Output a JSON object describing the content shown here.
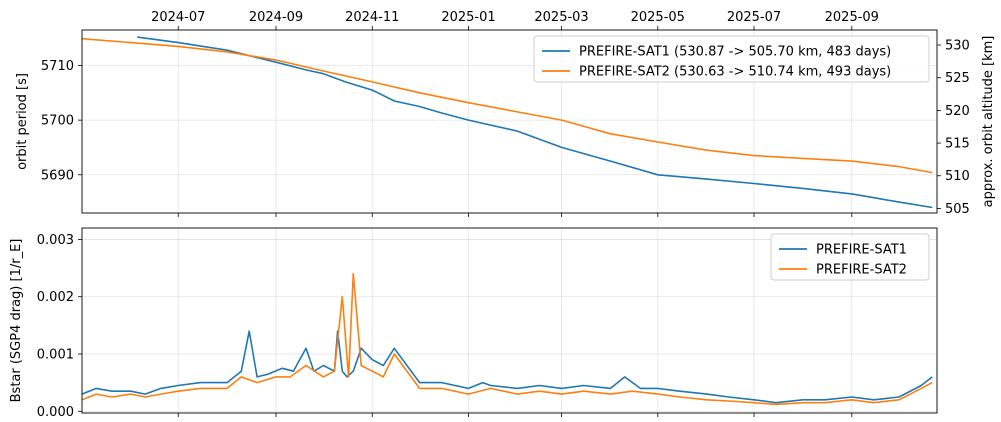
{
  "chart_data": [
    {
      "type": "line",
      "panel": "top",
      "title": "",
      "xlabel": "",
      "ylabel": "orbit period [s]",
      "ylabel_right": "approx. orbit altitude [km]",
      "xlim": [
        "2024-05-01",
        "2025-10-25"
      ],
      "ylim": [
        5683,
        5716.5
      ],
      "y_ticks": [
        5690,
        5700,
        5710
      ],
      "y_ticks_right": [
        505,
        510,
        515,
        520,
        525,
        530
      ],
      "x_ticks": [
        "2024-07",
        "2024-09",
        "2024-11",
        "2025-01",
        "2025-03",
        "2025-05",
        "2025-07",
        "2025-09"
      ],
      "x_tick_dates": [
        "2024-07-01",
        "2024-09-01",
        "2024-11-01",
        "2025-01-01",
        "2025-03-01",
        "2025-05-01",
        "2025-07-01",
        "2025-09-01"
      ],
      "grid": true,
      "legend_position": "top-right",
      "series": [
        {
          "name": "PREFIRE-SAT1 (530.87 -> 505.70 km, 483 days)",
          "color": "#1f77b4",
          "x": [
            "2024-06-05",
            "2024-07-01",
            "2024-08-01",
            "2024-09-01",
            "2024-09-20",
            "2024-10-01",
            "2024-10-15",
            "2024-11-01",
            "2024-11-15",
            "2024-12-01",
            "2024-12-15",
            "2025-01-01",
            "2025-02-01",
            "2025-03-01",
            "2025-04-01",
            "2025-05-01",
            "2025-06-01",
            "2025-07-01",
            "2025-08-01",
            "2025-09-01",
            "2025-09-15",
            "2025-10-01",
            "2025-10-22"
          ],
          "y": [
            5715.2,
            5714.2,
            5712.8,
            5710.6,
            5709.2,
            5708.5,
            5707.0,
            5705.5,
            5703.5,
            5702.5,
            5701.3,
            5700.0,
            5698.0,
            5695.0,
            5692.5,
            5690.0,
            5689.2,
            5688.4,
            5687.5,
            5686.5,
            5685.8,
            5685.0,
            5684.0
          ]
        },
        {
          "name": "PREFIRE-SAT2 (530.63 -> 510.74 km, 493 days)",
          "color": "#ff7f0e",
          "x": [
            "2024-05-01",
            "2024-06-01",
            "2024-07-01",
            "2024-08-01",
            "2024-09-01",
            "2024-10-01",
            "2024-11-01",
            "2024-12-01",
            "2025-01-01",
            "2025-02-01",
            "2025-03-01",
            "2025-04-01",
            "2025-05-01",
            "2025-06-01",
            "2025-07-01",
            "2025-08-01",
            "2025-09-01",
            "2025-10-01",
            "2025-10-22"
          ],
          "y": [
            5714.9,
            5714.2,
            5713.5,
            5712.5,
            5711.0,
            5709.0,
            5707.0,
            5705.0,
            5703.2,
            5701.5,
            5700.0,
            5697.5,
            5696.0,
            5694.5,
            5693.5,
            5693.0,
            5692.5,
            5691.5,
            5690.4
          ]
        }
      ]
    },
    {
      "type": "line",
      "panel": "bottom",
      "title": "",
      "xlabel": "",
      "ylabel": "Bstar (SGP4 drag) [1/r_E]",
      "xlim": [
        "2024-05-01",
        "2025-10-25"
      ],
      "ylim": [
        -3e-05,
        0.0032
      ],
      "y_ticks": [
        0.0,
        0.001,
        0.002,
        0.003
      ],
      "y_tick_labels": [
        "0.000",
        "0.001",
        "0.002",
        "0.003"
      ],
      "grid": true,
      "legend_position": "top-right",
      "series": [
        {
          "name": "PREFIRE-SAT1",
          "color": "#1f77b4",
          "x": [
            "2024-05-01",
            "2024-05-10",
            "2024-05-20",
            "2024-06-01",
            "2024-06-10",
            "2024-06-20",
            "2024-07-01",
            "2024-07-15",
            "2024-08-01",
            "2024-08-10",
            "2024-08-15",
            "2024-08-20",
            "2024-08-27",
            "2024-09-05",
            "2024-09-12",
            "2024-09-20",
            "2024-09-25",
            "2024-10-01",
            "2024-10-08",
            "2024-10-10",
            "2024-10-13",
            "2024-10-16",
            "2024-10-20",
            "2024-10-25",
            "2024-11-01",
            "2024-11-08",
            "2024-11-15",
            "2024-12-01",
            "2024-12-15",
            "2025-01-01",
            "2025-01-10",
            "2025-01-15",
            "2025-02-01",
            "2025-02-15",
            "2025-03-01",
            "2025-03-15",
            "2025-04-01",
            "2025-04-10",
            "2025-04-20",
            "2025-05-01",
            "2025-05-15",
            "2025-06-01",
            "2025-06-15",
            "2025-07-01",
            "2025-07-15",
            "2025-08-01",
            "2025-08-15",
            "2025-09-01",
            "2025-09-15",
            "2025-10-01",
            "2025-10-15",
            "2025-10-22"
          ],
          "y": [
            0.0003,
            0.0004,
            0.00035,
            0.00035,
            0.0003,
            0.0004,
            0.00045,
            0.0005,
            0.0005,
            0.0007,
            0.0014,
            0.0006,
            0.00065,
            0.00075,
            0.0007,
            0.0011,
            0.0007,
            0.0008,
            0.0007,
            0.0014,
            0.0007,
            0.0006,
            0.0007,
            0.0011,
            0.0009,
            0.0008,
            0.0011,
            0.0005,
            0.0005,
            0.0004,
            0.0005,
            0.00045,
            0.0004,
            0.00045,
            0.0004,
            0.00045,
            0.0004,
            0.0006,
            0.0004,
            0.0004,
            0.00035,
            0.0003,
            0.00025,
            0.0002,
            0.00015,
            0.0002,
            0.0002,
            0.00025,
            0.0002,
            0.00025,
            0.00045,
            0.0006
          ]
        },
        {
          "name": "PREFIRE-SAT2",
          "color": "#ff7f0e",
          "x": [
            "2024-05-01",
            "2024-05-10",
            "2024-05-20",
            "2024-06-01",
            "2024-06-10",
            "2024-06-20",
            "2024-07-01",
            "2024-07-15",
            "2024-08-01",
            "2024-08-10",
            "2024-08-20",
            "2024-09-01",
            "2024-09-10",
            "2024-09-20",
            "2024-10-01",
            "2024-10-08",
            "2024-10-13",
            "2024-10-17",
            "2024-10-20",
            "2024-10-25",
            "2024-11-01",
            "2024-11-08",
            "2024-11-15",
            "2024-12-01",
            "2024-12-15",
            "2025-01-01",
            "2025-01-15",
            "2025-02-01",
            "2025-02-15",
            "2025-03-01",
            "2025-03-15",
            "2025-04-01",
            "2025-04-15",
            "2025-05-01",
            "2025-05-15",
            "2025-06-01",
            "2025-06-15",
            "2025-07-01",
            "2025-07-15",
            "2025-08-01",
            "2025-08-15",
            "2025-09-01",
            "2025-09-15",
            "2025-10-01",
            "2025-10-15",
            "2025-10-22"
          ],
          "y": [
            0.0002,
            0.0003,
            0.00025,
            0.0003,
            0.00025,
            0.0003,
            0.00035,
            0.0004,
            0.0004,
            0.0006,
            0.0005,
            0.0006,
            0.0006,
            0.0008,
            0.0006,
            0.0007,
            0.002,
            0.0006,
            0.0024,
            0.0008,
            0.0007,
            0.0006,
            0.001,
            0.0004,
            0.0004,
            0.0003,
            0.0004,
            0.0003,
            0.00035,
            0.0003,
            0.00035,
            0.0003,
            0.00035,
            0.0003,
            0.00025,
            0.0002,
            0.00018,
            0.00015,
            0.00012,
            0.00015,
            0.00015,
            0.0002,
            0.00015,
            0.0002,
            0.0004,
            0.0005
          ]
        }
      ]
    }
  ]
}
